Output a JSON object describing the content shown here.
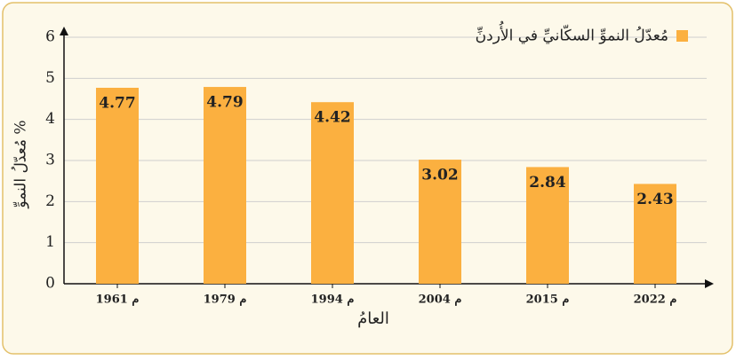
{
  "chart_data": {
    "type": "bar",
    "series_name": "مُعدّلُ النموِّ السكّانيِّ في الأُردنِّ",
    "y_label": "مُعدّلُ النموِّ %",
    "x_label": "العامُ",
    "categories": [
      "1961 م",
      "1979 م",
      "1994 م",
      "2004 م",
      "2015 م",
      "2022 م"
    ],
    "values": [
      4.77,
      4.79,
      4.42,
      3.02,
      2.84,
      2.43
    ],
    "color": "#fbb040",
    "ylim": [
      0,
      6
    ],
    "yticks": [
      0,
      1,
      2,
      3,
      4,
      5,
      6
    ],
    "grid": true
  }
}
